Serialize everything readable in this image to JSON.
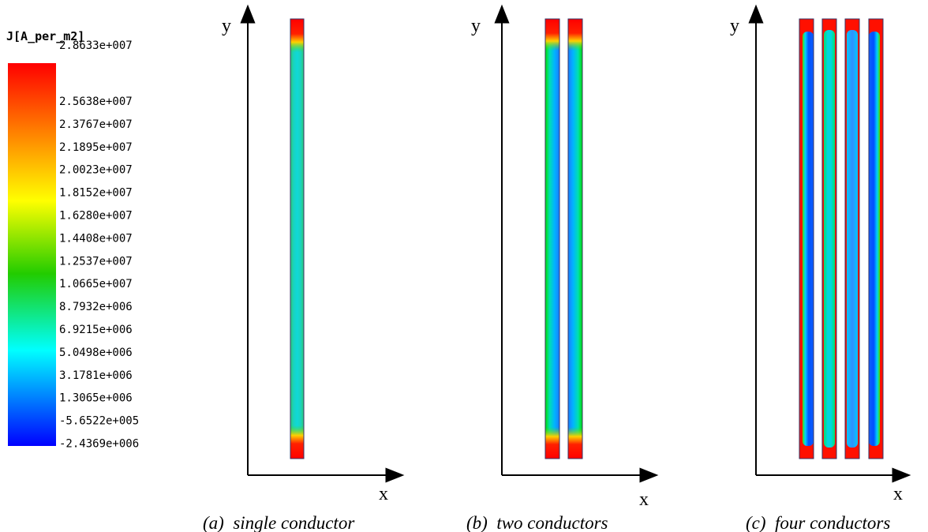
{
  "legend": {
    "title": "J[A_per_m2]",
    "levels": [
      "2.8633e+007",
      "2.5638e+007",
      "2.3767e+007",
      "2.1895e+007",
      "2.0023e+007",
      "1.8152e+007",
      "1.6280e+007",
      "1.4408e+007",
      "1.2537e+007",
      "1.0665e+007",
      "8.7932e+006",
      "6.9215e+006",
      "5.0498e+006",
      "3.1781e+006",
      "1.3065e+006",
      "-5.6522e+005",
      "-2.4369e+006"
    ],
    "colors": [
      "#ff0000",
      "#ff8000",
      "#ffff00",
      "#00cc00",
      "#00ffff",
      "#0000ff"
    ]
  },
  "panels": [
    {
      "id": "a",
      "caption": "(a)  single conductor",
      "x_axis": "x",
      "y_axis": "y",
      "conductor_count": 1
    },
    {
      "id": "b",
      "caption": "(b)  two conductors",
      "x_axis": "x",
      "y_axis": "y",
      "conductor_count": 2
    },
    {
      "id": "c",
      "caption": "(c)  four conductors",
      "x_axis": "x",
      "y_axis": "y",
      "conductor_count": 4
    }
  ]
}
